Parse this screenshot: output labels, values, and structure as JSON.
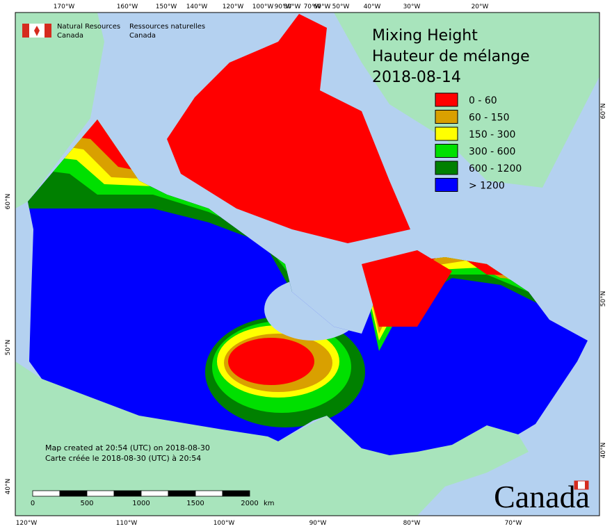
{
  "logo": {
    "org_en": [
      "Natural Resources",
      "Canada"
    ],
    "org_fr": [
      "Ressources naturelles",
      "Canada"
    ]
  },
  "title": [
    "Mixing Height",
    "Hauteur de mélange",
    "2018-08-14"
  ],
  "legend": [
    {
      "label": "0 - 60",
      "color": "#ff0000"
    },
    {
      "label": "60 - 150",
      "color": "#d9a000"
    },
    {
      "label": "150 - 300",
      "color": "#ffff00"
    },
    {
      "label": "300 - 600",
      "color": "#00e000"
    },
    {
      "label": "600 - 1200",
      "color": "#008000"
    },
    {
      "label": "> 1200",
      "color": "#0000ff"
    }
  ],
  "graticule": {
    "top": [
      "170°W",
      "160°W",
      "150°W",
      "140°W",
      "120°W",
      "100°W",
      "90°W",
      "80°W",
      "70°W",
      "60°W",
      "50°W",
      "40°W",
      "30°W",
      "20°W"
    ],
    "bottom": [
      "120°W",
      "110°W",
      "100°W",
      "90°W",
      "80°W",
      "70°W"
    ],
    "left": [
      "60°N",
      "50°N",
      "40°N"
    ],
    "right": [
      "60°N",
      "50°N",
      "40°N"
    ]
  },
  "notes": [
    "Map created at 20:54 (UTC) on 2018-08-30",
    "Carte créée le 2018-08-30 (UTC) à 20:54"
  ],
  "scale_bar": {
    "ticks": [
      "0",
      "500",
      "1000",
      "1500",
      "2000"
    ],
    "unit": "km"
  },
  "wordmark": "Canada"
}
